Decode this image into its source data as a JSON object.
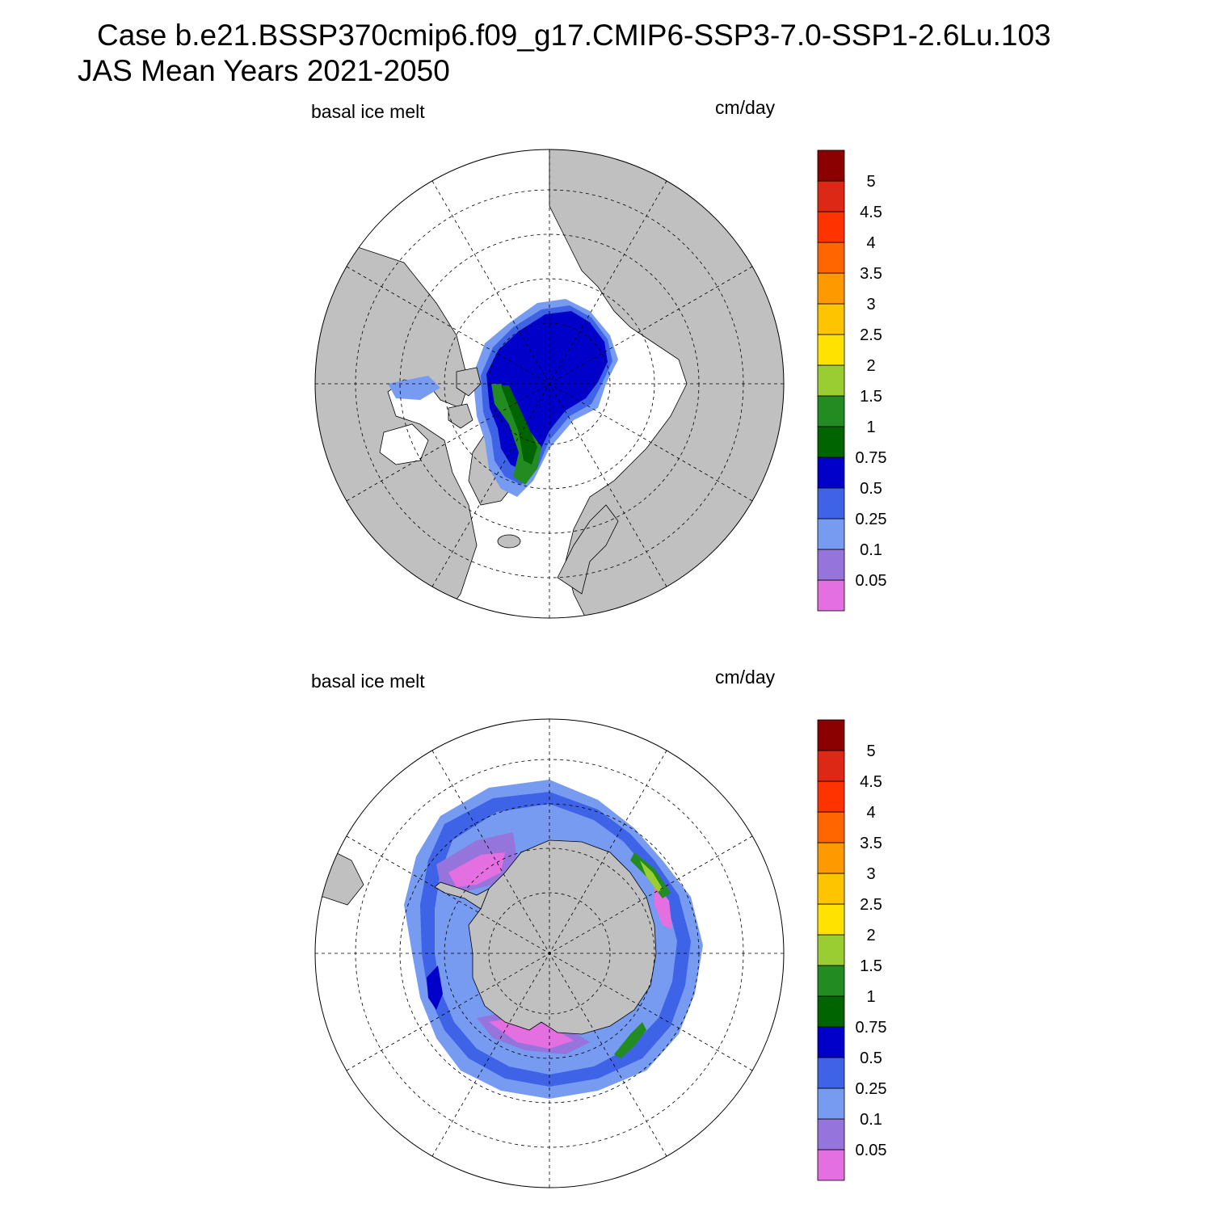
{
  "title": {
    "line1": "Case b.e21.BSSP370cmip6.f09_g17.CMIP6-SSP3-7.0-SSP1-2.6Lu.103",
    "line2": "JAS Mean   Years 2021-2050"
  },
  "panels": [
    {
      "id": "north",
      "variable_label": "basal ice melt",
      "units_label": "cm/day"
    },
    {
      "id": "south",
      "variable_label": "basal ice melt",
      "units_label": "cm/day"
    }
  ],
  "colorbar": {
    "levels": [
      "0.05",
      "0.1",
      "0.25",
      "0.5",
      "0.75",
      "1",
      "1.5",
      "2",
      "2.5",
      "3",
      "3.5",
      "4",
      "4.5",
      "5"
    ],
    "colors": [
      "#e36fe0",
      "#9575dc",
      "#789bf2",
      "#3e63e6",
      "#0000c8",
      "#006400",
      "#228b22",
      "#9acd32",
      "#ffe200",
      "#ffc400",
      "#ff9900",
      "#ff6600",
      "#ff3300",
      "#dc2814",
      "#8b0000"
    ]
  },
  "map_colors": {
    "land": "#c0c0c0",
    "ocean": "#ffffff"
  }
}
